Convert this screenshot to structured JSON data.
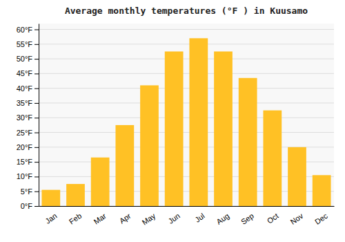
{
  "chart_data": {
    "type": "bar",
    "title": "Average monthly temperatures (°F ) in Kuusamo",
    "categories": [
      "Jan",
      "Feb",
      "Mar",
      "Apr",
      "May",
      "Jun",
      "Jul",
      "Aug",
      "Sep",
      "Oct",
      "Nov",
      "Dec"
    ],
    "values": [
      5.5,
      7.5,
      16.5,
      27.5,
      41.0,
      52.5,
      57.0,
      52.5,
      43.5,
      32.5,
      20.0,
      10.5
    ],
    "color": "#FFC125",
    "ylim": [
      0,
      62
    ],
    "yticks": [
      {
        "value": 0,
        "label": "0°F"
      },
      {
        "value": 5,
        "label": "5°F"
      },
      {
        "value": 10,
        "label": "10°F"
      },
      {
        "value": 15,
        "label": "15°F"
      },
      {
        "value": 20,
        "label": "20°F"
      },
      {
        "value": 25,
        "label": "25°F"
      },
      {
        "value": 30,
        "label": "30°F"
      },
      {
        "value": 35,
        "label": "35°F"
      },
      {
        "value": 40,
        "label": "40°F"
      },
      {
        "value": 45,
        "label": "45°F"
      },
      {
        "value": 50,
        "label": "50°F"
      },
      {
        "value": 55,
        "label": "55°F"
      },
      {
        "value": 60,
        "label": "60°F"
      }
    ],
    "grid": true
  }
}
